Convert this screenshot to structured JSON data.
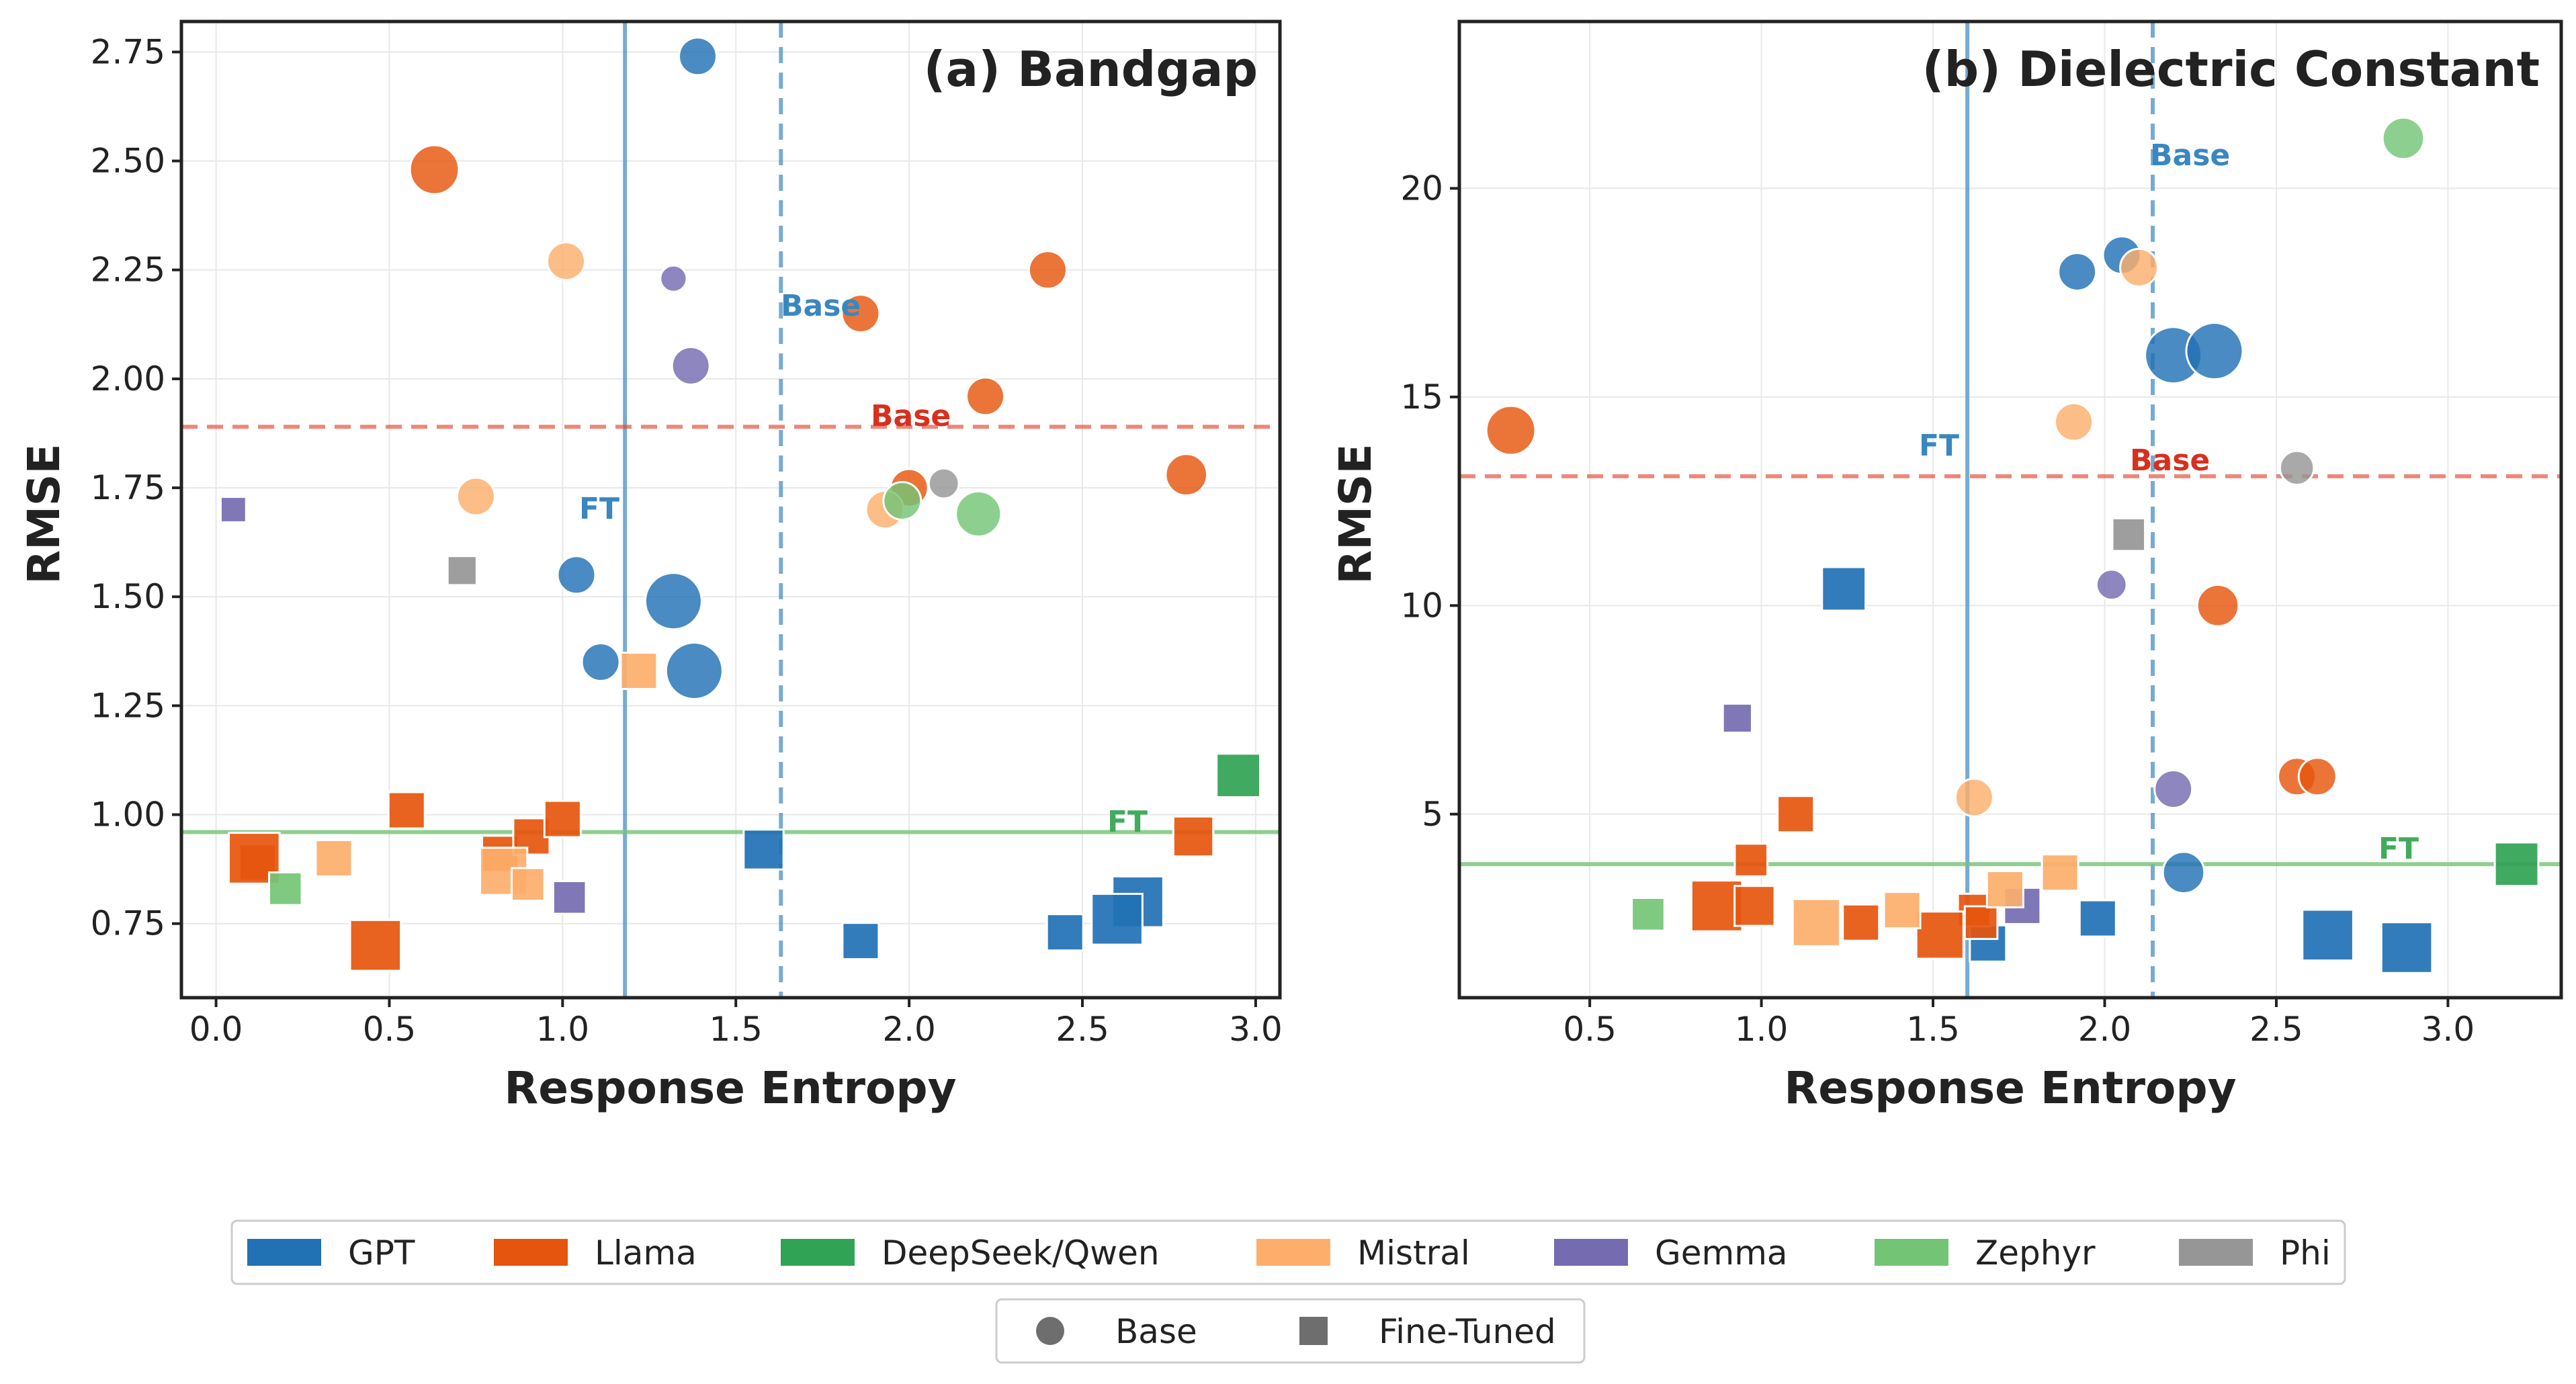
{
  "colors": {
    "GPT": "#2171b5",
    "Llama": "#e6550d",
    "DeepSeek/Qwen": "#31a354",
    "Mistral": "#fdae6b",
    "Gemma": "#756bb1",
    "Zephyr": "#74c476",
    "Phi": "#969696",
    "base_ref": "#e34a33",
    "ft_ref": "#74c476",
    "vline": "#4a90c4"
  },
  "legend": {
    "families": [
      "GPT",
      "Llama",
      "DeepSeek/Qwen",
      "Mistral",
      "Gemma",
      "Zephyr",
      "Phi"
    ],
    "markers": [
      {
        "label": "Base",
        "shape": "circle"
      },
      {
        "label": "Fine-Tuned",
        "shape": "square"
      }
    ]
  },
  "chart_data": [
    {
      "type": "scatter",
      "title": "(a)  Bandgap",
      "xlabel": "Response Entropy",
      "ylabel": "RMSE",
      "xlim": [
        -0.1,
        3.07
      ],
      "ylim": [
        0.58,
        2.82
      ],
      "xticks": [
        0.0,
        0.5,
        1.0,
        1.5,
        2.0,
        2.5,
        3.0
      ],
      "xtick_labels": [
        "0.0",
        "0.5",
        "1.0",
        "1.5",
        "2.0",
        "2.5",
        "3.0"
      ],
      "yticks": [
        0.75,
        1.0,
        1.25,
        1.5,
        1.75,
        2.0,
        2.25,
        2.5,
        2.75
      ],
      "ytick_labels": [
        "0.75",
        "1.00",
        "1.25",
        "1.50",
        "1.75",
        "2.00",
        "2.25",
        "2.50",
        "2.75"
      ],
      "ref_lines": {
        "base_rmse": 1.89,
        "base_rmse_label": "Base",
        "ft_rmse": 0.96,
        "ft_rmse_label": "FT",
        "base_entropy": 1.63,
        "base_entropy_label": "Base",
        "ft_entropy": 1.18,
        "ft_entropy_label": "FT"
      },
      "points": [
        {
          "family": "GPT",
          "kind": "base",
          "x": 1.39,
          "y": 2.74,
          "size": 1.0
        },
        {
          "family": "GPT",
          "kind": "base",
          "x": 1.04,
          "y": 1.55,
          "size": 1.0
        },
        {
          "family": "GPT",
          "kind": "base",
          "x": 1.32,
          "y": 1.49,
          "size": 1.5
        },
        {
          "family": "GPT",
          "kind": "base",
          "x": 1.11,
          "y": 1.35,
          "size": 1.0
        },
        {
          "family": "GPT",
          "kind": "base",
          "x": 1.38,
          "y": 1.33,
          "size": 1.5
        },
        {
          "family": "Llama",
          "kind": "base",
          "x": 0.63,
          "y": 2.48,
          "size": 1.3
        },
        {
          "family": "Llama",
          "kind": "base",
          "x": 1.86,
          "y": 2.15,
          "size": 1.0
        },
        {
          "family": "Llama",
          "kind": "base",
          "x": 2.4,
          "y": 2.25,
          "size": 1.0
        },
        {
          "family": "Llama",
          "kind": "base",
          "x": 2.22,
          "y": 1.96,
          "size": 1.0
        },
        {
          "family": "Llama",
          "kind": "base",
          "x": 2.0,
          "y": 1.75,
          "size": 1.0
        },
        {
          "family": "Llama",
          "kind": "base",
          "x": 2.8,
          "y": 1.78,
          "size": 1.1
        },
        {
          "family": "Mistral",
          "kind": "base",
          "x": 1.01,
          "y": 2.27,
          "size": 1.0
        },
        {
          "family": "Mistral",
          "kind": "base",
          "x": 0.75,
          "y": 1.73,
          "size": 1.0
        },
        {
          "family": "Mistral",
          "kind": "base",
          "x": 1.93,
          "y": 1.7,
          "size": 1.0
        },
        {
          "family": "Gemma",
          "kind": "base",
          "x": 1.32,
          "y": 2.23,
          "size": 0.7
        },
        {
          "family": "Gemma",
          "kind": "base",
          "x": 1.37,
          "y": 2.03,
          "size": 1.0
        },
        {
          "family": "Zephyr",
          "kind": "base",
          "x": 1.98,
          "y": 1.72,
          "size": 1.0
        },
        {
          "family": "Zephyr",
          "kind": "base",
          "x": 2.2,
          "y": 1.69,
          "size": 1.2
        },
        {
          "family": "Phi",
          "kind": "base",
          "x": 2.1,
          "y": 1.76,
          "size": 0.8
        },
        {
          "family": "Llama",
          "kind": "ft",
          "x": 0.12,
          "y": 0.89,
          "size": 1.0
        },
        {
          "family": "Llama",
          "kind": "ft",
          "x": 0.11,
          "y": 0.9,
          "size": 1.4
        },
        {
          "family": "Llama",
          "kind": "ft",
          "x": 0.46,
          "y": 0.7,
          "size": 1.4
        },
        {
          "family": "Llama",
          "kind": "ft",
          "x": 0.55,
          "y": 1.01,
          "size": 1.0
        },
        {
          "family": "Llama",
          "kind": "ft",
          "x": 0.82,
          "y": 0.91,
          "size": 1.0
        },
        {
          "family": "Llama",
          "kind": "ft",
          "x": 0.91,
          "y": 0.95,
          "size": 1.0
        },
        {
          "family": "Llama",
          "kind": "ft",
          "x": 1.0,
          "y": 0.99,
          "size": 1.0
        },
        {
          "family": "Llama",
          "kind": "ft",
          "x": 2.82,
          "y": 0.95,
          "size": 1.1
        },
        {
          "family": "Mistral",
          "kind": "ft",
          "x": 0.34,
          "y": 0.9,
          "size": 1.0
        },
        {
          "family": "Mistral",
          "kind": "ft",
          "x": 0.83,
          "y": 0.87,
          "size": 1.3
        },
        {
          "family": "Mistral",
          "kind": "ft",
          "x": 0.9,
          "y": 0.84,
          "size": 0.9
        },
        {
          "family": "Mistral",
          "kind": "ft",
          "x": 1.22,
          "y": 1.33,
          "size": 1.0
        },
        {
          "family": "Zephyr",
          "kind": "ft",
          "x": 0.2,
          "y": 0.83,
          "size": 0.9
        },
        {
          "family": "Gemma",
          "kind": "ft",
          "x": 1.02,
          "y": 0.81,
          "size": 0.9
        },
        {
          "family": "Gemma",
          "kind": "ft",
          "x": 0.05,
          "y": 1.7,
          "size": 0.7
        },
        {
          "family": "Phi",
          "kind": "ft",
          "x": 0.71,
          "y": 1.56,
          "size": 0.8
        },
        {
          "family": "GPT",
          "kind": "ft",
          "x": 1.58,
          "y": 0.92,
          "size": 1.1
        },
        {
          "family": "GPT",
          "kind": "ft",
          "x": 1.86,
          "y": 0.71,
          "size": 1.0
        },
        {
          "family": "GPT",
          "kind": "ft",
          "x": 2.45,
          "y": 0.73,
          "size": 1.0
        },
        {
          "family": "GPT",
          "kind": "ft",
          "x": 2.66,
          "y": 0.8,
          "size": 1.4
        },
        {
          "family": "GPT",
          "kind": "ft",
          "x": 2.6,
          "y": 0.76,
          "size": 1.4
        },
        {
          "family": "DeepSeek/Qwen",
          "kind": "ft",
          "x": 2.95,
          "y": 1.09,
          "size": 1.2
        }
      ]
    },
    {
      "type": "scatter",
      "title": "(b)  Dielectric Constant",
      "xlabel": "Response Entropy",
      "ylabel": "RMSE",
      "xlim": [
        0.12,
        3.33
      ],
      "ylim": [
        0.6,
        24.0
      ],
      "xticks": [
        0.5,
        1.0,
        1.5,
        2.0,
        2.5,
        3.0
      ],
      "xtick_labels": [
        "0.5",
        "1.0",
        "1.5",
        "2.0",
        "2.5",
        "3.0"
      ],
      "yticks": [
        5,
        10,
        15,
        20
      ],
      "ytick_labels": [
        "5",
        "10",
        "15",
        "20"
      ],
      "ref_lines": {
        "base_rmse": 13.1,
        "base_rmse_label": "Base",
        "ft_rmse": 3.8,
        "ft_rmse_label": "FT",
        "base_entropy": 2.14,
        "base_entropy_label": "Base",
        "ft_entropy": 1.6,
        "ft_entropy_label": "FT"
      },
      "points": [
        {
          "family": "GPT",
          "kind": "base",
          "x": 1.92,
          "y": 18.0,
          "size": 1.0
        },
        {
          "family": "GPT",
          "kind": "base",
          "x": 2.05,
          "y": 18.4,
          "size": 1.0
        },
        {
          "family": "GPT",
          "kind": "base",
          "x": 2.2,
          "y": 16.0,
          "size": 1.5
        },
        {
          "family": "GPT",
          "kind": "base",
          "x": 2.32,
          "y": 16.1,
          "size": 1.5
        },
        {
          "family": "GPT",
          "kind": "base",
          "x": 2.23,
          "y": 3.6,
          "size": 1.1
        },
        {
          "family": "Zephyr",
          "kind": "base",
          "x": 2.87,
          "y": 21.2,
          "size": 1.1
        },
        {
          "family": "Mistral",
          "kind": "base",
          "x": 2.1,
          "y": 18.1,
          "size": 1.0
        },
        {
          "family": "Mistral",
          "kind": "base",
          "x": 1.91,
          "y": 14.4,
          "size": 1.0
        },
        {
          "family": "Mistral",
          "kind": "base",
          "x": 1.62,
          "y": 5.4,
          "size": 1.0
        },
        {
          "family": "Llama",
          "kind": "base",
          "x": 0.27,
          "y": 14.2,
          "size": 1.3
        },
        {
          "family": "Llama",
          "kind": "base",
          "x": 2.33,
          "y": 10.0,
          "size": 1.1
        },
        {
          "family": "Llama",
          "kind": "base",
          "x": 2.56,
          "y": 5.9,
          "size": 1.0
        },
        {
          "family": "Llama",
          "kind": "base",
          "x": 2.62,
          "y": 5.9,
          "size": 1.0
        },
        {
          "family": "Gemma",
          "kind": "base",
          "x": 2.02,
          "y": 10.5,
          "size": 0.8
        },
        {
          "family": "Gemma",
          "kind": "base",
          "x": 2.2,
          "y": 5.6,
          "size": 1.0
        },
        {
          "family": "Phi",
          "kind": "base",
          "x": 2.56,
          "y": 13.3,
          "size": 0.9
        },
        {
          "family": "GPT",
          "kind": "ft",
          "x": 1.24,
          "y": 10.4,
          "size": 1.2
        },
        {
          "family": "GPT",
          "kind": "ft",
          "x": 1.98,
          "y": 2.5,
          "size": 1.0
        },
        {
          "family": "GPT",
          "kind": "ft",
          "x": 1.66,
          "y": 1.9,
          "size": 1.0
        },
        {
          "family": "GPT",
          "kind": "ft",
          "x": 2.65,
          "y": 2.1,
          "size": 1.4
        },
        {
          "family": "GPT",
          "kind": "ft",
          "x": 2.88,
          "y": 1.8,
          "size": 1.4
        },
        {
          "family": "Gemma",
          "kind": "ft",
          "x": 0.93,
          "y": 7.3,
          "size": 0.8
        },
        {
          "family": "Gemma",
          "kind": "ft",
          "x": 1.76,
          "y": 2.8,
          "size": 1.0
        },
        {
          "family": "Phi",
          "kind": "ft",
          "x": 2.07,
          "y": 11.7,
          "size": 0.9
        },
        {
          "family": "Llama",
          "kind": "ft",
          "x": 1.1,
          "y": 5.0,
          "size": 1.0
        },
        {
          "family": "Llama",
          "kind": "ft",
          "x": 0.97,
          "y": 3.9,
          "size": 0.9
        },
        {
          "family": "Llama",
          "kind": "ft",
          "x": 0.87,
          "y": 2.8,
          "size": 1.4
        },
        {
          "family": "Llama",
          "kind": "ft",
          "x": 0.98,
          "y": 2.8,
          "size": 1.1
        },
        {
          "family": "Llama",
          "kind": "ft",
          "x": 1.29,
          "y": 2.4,
          "size": 1.0
        },
        {
          "family": "Llama",
          "kind": "ft",
          "x": 1.62,
          "y": 2.7,
          "size": 0.9
        },
        {
          "family": "Llama",
          "kind": "ft",
          "x": 1.64,
          "y": 2.4,
          "size": 0.9
        },
        {
          "family": "Llama",
          "kind": "ft",
          "x": 1.52,
          "y": 2.1,
          "size": 1.3
        },
        {
          "family": "Mistral",
          "kind": "ft",
          "x": 1.16,
          "y": 2.4,
          "size": 1.3
        },
        {
          "family": "Mistral",
          "kind": "ft",
          "x": 1.41,
          "y": 2.7,
          "size": 1.0
        },
        {
          "family": "Mistral",
          "kind": "ft",
          "x": 1.71,
          "y": 3.2,
          "size": 1.0
        },
        {
          "family": "Mistral",
          "kind": "ft",
          "x": 1.87,
          "y": 3.6,
          "size": 1.0
        },
        {
          "family": "Zephyr",
          "kind": "ft",
          "x": 0.67,
          "y": 2.6,
          "size": 0.9
        },
        {
          "family": "DeepSeek/Qwen",
          "kind": "ft",
          "x": 3.2,
          "y": 3.8,
          "size": 1.2
        }
      ]
    }
  ]
}
